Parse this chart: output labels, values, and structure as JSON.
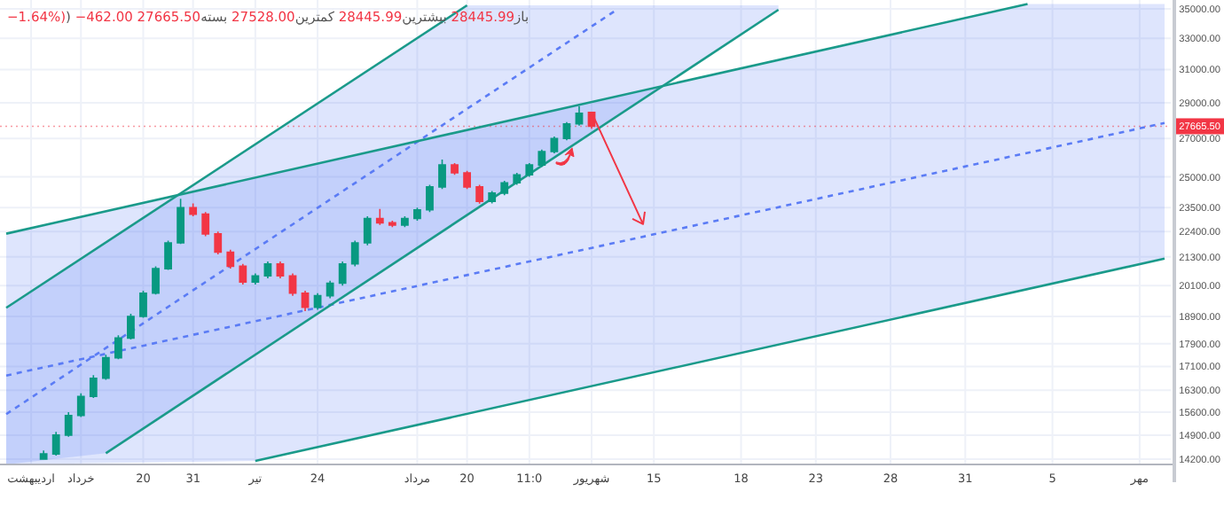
{
  "chart_data": {
    "type": "candlestick",
    "title": "باز28445.99 بیشترین28445.99 کمترین27528.00 بسته27665.50 −462.00 (−1.64%)",
    "categories": [
      null,
      null,
      "اردیبهشت",
      null,
      null,
      null,
      "خرداد",
      null,
      null,
      null,
      null,
      "20",
      null,
      null,
      null,
      "31",
      null,
      null,
      null,
      null,
      "تیر",
      null,
      null,
      null,
      null,
      "24",
      null,
      null,
      null,
      null,
      null,
      null,
      null,
      "مرداد",
      null,
      null,
      null,
      "20",
      null,
      null,
      null,
      null,
      "11:0",
      null,
      null,
      null,
      null,
      "شهریور",
      null,
      null,
      null,
      null,
      "15",
      null,
      null,
      null,
      null,
      null,
      null,
      "18",
      null,
      null,
      null,
      null,
      null,
      "23",
      null,
      null,
      null,
      null,
      null,
      "28",
      null,
      null,
      null,
      null,
      null,
      "31",
      null,
      null,
      null,
      null,
      null,
      null,
      "5",
      null,
      null,
      null,
      null,
      null,
      null,
      "مهر",
      null,
      null
    ],
    "ohlc": [
      null,
      null,
      null,
      [
        14200,
        14450,
        14200,
        14350
      ],
      [
        14350,
        15000,
        14300,
        14900
      ],
      [
        14900,
        15600,
        14850,
        15500
      ],
      [
        15500,
        16200,
        15450,
        16100
      ],
      [
        16100,
        16800,
        16050,
        16700
      ],
      [
        16700,
        17500,
        16650,
        17400
      ],
      [
        17400,
        18200,
        17350,
        18100
      ],
      [
        18100,
        19000,
        18050,
        18900
      ],
      [
        18900,
        19900,
        18850,
        19800
      ],
      [
        19800,
        20900,
        19750,
        20800
      ],
      [
        20800,
        22000,
        20750,
        21900
      ],
      [
        21900,
        23930,
        21850,
        23500
      ],
      [
        23500,
        23700,
        23100,
        23200
      ],
      [
        23200,
        23300,
        22200,
        22300
      ],
      [
        22300,
        22400,
        21400,
        21500
      ],
      [
        21500,
        21600,
        20800,
        20900
      ],
      [
        20900,
        21000,
        20150,
        20250
      ],
      [
        20250,
        20600,
        20150,
        20500
      ],
      [
        20500,
        21100,
        20400,
        21000
      ],
      [
        21000,
        21100,
        20400,
        20500
      ],
      [
        20500,
        20600,
        19700,
        19800
      ],
      [
        19800,
        19900,
        19100,
        19250
      ],
      [
        19250,
        19800,
        19150,
        19700
      ],
      [
        19700,
        20300,
        19600,
        20200
      ],
      [
        20200,
        21100,
        20100,
        21000
      ],
      [
        21000,
        22000,
        20900,
        21900
      ],
      [
        21900,
        23100,
        21800,
        23000
      ],
      [
        23000,
        23440,
        22700,
        22800
      ],
      [
        22800,
        22900,
        22600,
        22700
      ],
      [
        22700,
        23100,
        22600,
        23000
      ],
      [
        23000,
        23500,
        22900,
        23400
      ],
      [
        23400,
        24600,
        23300,
        24500
      ],
      [
        24500,
        25880,
        24400,
        25600
      ],
      [
        25600,
        25700,
        25100,
        25200
      ],
      [
        25200,
        25300,
        24400,
        24500
      ],
      [
        24500,
        24600,
        23690,
        23800
      ],
      [
        23800,
        24300,
        23700,
        24200
      ],
      [
        24200,
        24800,
        24100,
        24700
      ],
      [
        24700,
        25200,
        24600,
        25100
      ],
      [
        25100,
        25700,
        25000,
        25600
      ],
      [
        25600,
        26400,
        25500,
        26300
      ],
      [
        26300,
        27100,
        26200,
        27000
      ],
      [
        27000,
        27900,
        26900,
        27800
      ],
      [
        27800,
        28800,
        27700,
        28400
      ],
      [
        28445.99,
        28445.99,
        27528,
        27665.5
      ],
      null,
      null,
      null,
      null,
      null,
      null,
      null,
      null,
      null,
      null,
      null,
      null,
      null,
      null,
      null,
      null,
      null,
      null,
      null,
      null,
      null,
      null,
      null,
      null,
      null,
      null,
      null,
      null,
      null,
      null,
      null,
      null,
      null,
      null,
      null,
      null,
      null,
      null,
      null,
      null,
      null,
      null,
      null,
      null,
      null,
      null
    ],
    "colors": [
      null,
      null,
      null,
      "#089981",
      "#089981",
      "#089981",
      "#089981",
      "#089981",
      "#089981",
      "#089981",
      "#089981",
      "#089981",
      "#089981",
      "#089981",
      "#089981",
      "#f23645",
      "#f23645",
      "#f23645",
      "#f23645",
      "#f23645",
      "#089981",
      "#089981",
      "#f23645",
      "#f23645",
      "#f23645",
      "#089981",
      "#089981",
      "#089981",
      "#089981",
      "#089981",
      "#f23645",
      "#f23645",
      "#089981",
      "#089981",
      "#089981",
      "#089981",
      "#f23645",
      "#f23645",
      "#f23645",
      "#089981",
      "#089981",
      "#089981",
      "#089981",
      "#089981",
      "#089981",
      "#089981",
      "#089981",
      "#f23645",
      null,
      null,
      null,
      null,
      null,
      null,
      null,
      null,
      null,
      null,
      null,
      null,
      null,
      null,
      null,
      null,
      null,
      null,
      null,
      null,
      null,
      null,
      null,
      null,
      null,
      null,
      null,
      null,
      null,
      null,
      null,
      null,
      null,
      null,
      null,
      null,
      null,
      null,
      null,
      null,
      null,
      null,
      null,
      null,
      null,
      null
    ],
    "series": [
      {
        "type": "line",
        "color": "#5b7cf5",
        "line_style": "dashed",
        "values": [
          16790,
          null,
          null,
          null,
          null,
          null,
          null,
          null,
          null,
          null,
          null,
          null,
          null,
          null,
          null,
          null,
          null,
          null,
          null,
          null,
          18720,
          null,
          null,
          null,
          null,
          null,
          null,
          null,
          null,
          null,
          null,
          null,
          null,
          null,
          null,
          null,
          null,
          null,
          null,
          null,
          null,
          null,
          null,
          null,
          null,
          null,
          null,
          null,
          null,
          null,
          null,
          null,
          null,
          null,
          null,
          null,
          null,
          null,
          null,
          null,
          null,
          null,
          null,
          null,
          null,
          null,
          null,
          null,
          null,
          null,
          null,
          null,
          null,
          null,
          null,
          null,
          null,
          null,
          null,
          null,
          null,
          null,
          26230,
          null,
          null,
          null,
          null,
          null,
          null,
          null,
          null,
          null,
          null,
          27850
        ],
        "lower": [
          14050,
          null,
          null,
          null,
          null,
          null,
          null,
          null,
          null,
          null,
          null,
          null,
          null,
          null,
          null,
          null,
          null,
          null,
          null,
          null,
          14150,
          null,
          null,
          null,
          null,
          null,
          null,
          null,
          null,
          null,
          null,
          null,
          null,
          null,
          null,
          null,
          null,
          null,
          null,
          null,
          null,
          null,
          null,
          null,
          null,
          null,
          null,
          null,
          null,
          null,
          null,
          null,
          null,
          null,
          null,
          null,
          null,
          null,
          null,
          null,
          null,
          null,
          null,
          null,
          null,
          null,
          null,
          null,
          null,
          null,
          null,
          null,
          null,
          null,
          null,
          null,
          null,
          null,
          null,
          null,
          null,
          null,
          19960,
          null,
          null,
          null,
          null,
          null,
          null,
          null,
          null,
          null,
          null,
          21220
        ],
        "upper": [
          22310,
          null,
          null,
          null,
          null,
          null,
          null,
          null,
          null,
          null,
          null,
          null,
          null,
          null,
          null,
          null,
          null,
          null,
          null,
          null,
          24960,
          null,
          null,
          null,
          null,
          null,
          null,
          null,
          null,
          null,
          null,
          null,
          null,
          null,
          null,
          null,
          null,
          null,
          null,
          null,
          null,
          null,
          null,
          null,
          null,
          null,
          null,
          null,
          null,
          null,
          null,
          null,
          null,
          null,
          null,
          null,
          null,
          null,
          null,
          null,
          null,
          null,
          null,
          null,
          null,
          null,
          null,
          null,
          null,
          null,
          null,
          null,
          null,
          null,
          null,
          null,
          null,
          null,
          null,
          null,
          null,
          null,
          35350,
          null,
          null,
          null,
          null,
          null,
          null,
          null,
          null,
          null,
          null,
          35350
        ]
      },
      {
        "type": "line",
        "color": "#5b7cf5",
        "line_style": "dashed",
        "values": [
          15540,
          null,
          null,
          null,
          null,
          null,
          null,
          null,
          17740,
          null,
          null,
          null,
          null,
          null,
          null,
          null,
          null,
          null,
          null,
          null,
          null,
          null,
          null,
          null,
          null,
          null,
          null,
          null,
          null,
          null,
          null,
          null,
          null,
          null,
          null,
          null,
          null,
          28650,
          null,
          null,
          null,
          null,
          null,
          null,
          null,
          null,
          null,
          null,
          null,
          34930,
          null,
          null,
          null,
          null,
          null,
          null,
          null,
          null,
          null,
          null,
          null,
          null,
          null,
          null,
          null,
          null,
          null,
          null,
          null,
          null,
          null,
          null,
          null,
          null,
          null,
          null,
          null,
          null,
          null,
          null,
          null,
          null,
          null,
          null,
          null,
          null,
          null,
          null,
          null,
          null,
          null,
          null,
          null,
          null
        ],
        "lower": [
          14050,
          null,
          null,
          null,
          null,
          null,
          null,
          null,
          14370,
          null,
          null,
          null,
          null,
          null,
          null,
          null,
          null,
          null,
          null,
          null,
          null,
          null,
          null,
          null,
          null,
          null,
          null,
          null,
          null,
          null,
          null,
          null,
          null,
          null,
          null,
          null,
          null,
          23160,
          null,
          null,
          null,
          null,
          null,
          null,
          null,
          null,
          null,
          null,
          null,
          28210,
          null,
          null,
          null,
          null,
          null,
          null,
          null,
          null,
          null,
          null,
          null,
          null,
          34940,
          null,
          null,
          null,
          null,
          null,
          null,
          null,
          null,
          null,
          null,
          null,
          null,
          null,
          null,
          null,
          null,
          null,
          null,
          null,
          null,
          null,
          null,
          null,
          null,
          null,
          null,
          null,
          null,
          null,
          null,
          null
        ],
        "upper": [
          19230,
          null,
          null,
          null,
          null,
          null,
          null,
          null,
          21900,
          null,
          null,
          null,
          null,
          null,
          null,
          null,
          null,
          null,
          null,
          null,
          null,
          null,
          null,
          null,
          null,
          null,
          null,
          null,
          null,
          null,
          null,
          null,
          null,
          null,
          null,
          null,
          null,
          35250,
          null,
          null,
          null,
          null,
          null,
          null,
          null,
          null,
          null,
          null,
          null,
          35250,
          null,
          null,
          null,
          null,
          null,
          null,
          null,
          null,
          null,
          null,
          null,
          null,
          35250,
          null,
          null,
          null,
          null,
          null,
          null,
          null,
          null,
          null,
          null,
          null,
          null,
          null,
          null,
          null,
          null,
          null,
          null,
          null,
          null,
          null,
          null,
          null,
          null,
          null,
          null,
          null,
          null,
          null,
          null,
          null
        ]
      },
      {
        "type": "line",
        "color": "#1a9a8a",
        "line_style": "solid",
        "values": [
          22310,
          null,
          null,
          null,
          null,
          null,
          null,
          null,
          null,
          null,
          null,
          null,
          null,
          null,
          null,
          null,
          null,
          null,
          null,
          null,
          null,
          null,
          null,
          null,
          null,
          null,
          null,
          null,
          null,
          null,
          null,
          null,
          null,
          null,
          null,
          null,
          null,
          null,
          null,
          null,
          null,
          null,
          null,
          null,
          null,
          null,
          null,
          null,
          null,
          null,
          null,
          null,
          null,
          null,
          null,
          null,
          null,
          null,
          null,
          null,
          null,
          null,
          null,
          null,
          null,
          null,
          null,
          null,
          null,
          null,
          null,
          null,
          null,
          null,
          null,
          null,
          null,
          null,
          null,
          null,
          null,
          null,
          35350,
          null,
          null,
          null,
          null,
          null,
          null,
          null,
          null,
          null,
          null,
          null
        ]
      },
      {
        "type": "line",
        "color": "#1a9a8a",
        "line_style": "solid",
        "values": [
          null,
          null,
          null,
          null,
          null,
          null,
          null,
          null,
          null,
          null,
          null,
          null,
          null,
          null,
          null,
          null,
          null,
          null,
          null,
          null,
          14150,
          null,
          null,
          null,
          null,
          null,
          null,
          null,
          null,
          null,
          null,
          null,
          null,
          null,
          null,
          null,
          null,
          null,
          null,
          null,
          null,
          null,
          null,
          null,
          null,
          null,
          null,
          null,
          null,
          null,
          null,
          null,
          null,
          null,
          null,
          null,
          null,
          null,
          null,
          null,
          null,
          null,
          null,
          null,
          null,
          null,
          null,
          null,
          null,
          null,
          null,
          null,
          null,
          null,
          null,
          null,
          null,
          null,
          null,
          null,
          null,
          null,
          null,
          null,
          null,
          null,
          null,
          null,
          null,
          null,
          null,
          null,
          null,
          21220
        ]
      },
      {
        "type": "line",
        "color": "#1a9a8a",
        "line_style": "solid",
        "values": [
          19230,
          null,
          null,
          null,
          null,
          null,
          null,
          null,
          null,
          null,
          null,
          null,
          null,
          null,
          null,
          null,
          null,
          null,
          null,
          null,
          null,
          null,
          null,
          null,
          null,
          null,
          null,
          null,
          null,
          null,
          null,
          null,
          null,
          null,
          null,
          null,
          null,
          35250,
          null,
          null,
          null,
          null,
          null,
          null,
          null,
          null,
          null,
          null,
          null,
          null,
          null,
          null,
          null,
          null,
          null,
          null,
          null,
          null,
          null,
          null,
          null,
          null,
          null,
          null,
          null,
          null,
          null,
          null,
          null,
          null,
          null,
          null,
          null,
          null,
          null,
          null,
          null,
          null,
          null,
          null,
          null,
          null,
          null,
          null,
          null,
          null,
          null,
          null,
          null,
          null,
          null,
          null,
          null,
          null
        ]
      },
      {
        "type": "line",
        "color": "#1a9a8a",
        "line_style": "solid",
        "values": [
          null,
          null,
          null,
          null,
          null,
          null,
          null,
          null,
          14370,
          null,
          null,
          null,
          null,
          null,
          null,
          null,
          null,
          null,
          null,
          null,
          null,
          null,
          null,
          null,
          null,
          null,
          null,
          null,
          null,
          null,
          null,
          null,
          null,
          null,
          null,
          null,
          null,
          null,
          null,
          null,
          null,
          null,
          null,
          null,
          null,
          null,
          null,
          null,
          null,
          null,
          null,
          null,
          null,
          null,
          null,
          null,
          null,
          null,
          null,
          null,
          null,
          null,
          34940,
          null,
          null,
          null,
          null,
          null,
          null,
          null,
          null,
          null,
          null,
          null,
          null,
          null,
          null,
          null,
          null,
          null,
          null,
          null,
          null,
          null,
          null,
          null,
          null,
          null,
          null,
          null,
          null,
          null,
          null,
          null
        ]
      }
    ],
    "ref_lines": [
      {
        "axis": "y",
        "value": 27665.5,
        "label": "27665.50",
        "color": "#f23645",
        "line_style": "dotted"
      }
    ],
    "log": true,
    "grid": true,
    "ylim": [
      14050,
      35630
    ],
    "yticks": [
      {
        "value": 35000,
        "label": "35000.00"
      },
      {
        "value": 33000,
        "label": "33000.00"
      },
      {
        "value": 31000,
        "label": "31000.00"
      },
      {
        "value": 29000,
        "label": "29000.00"
      },
      {
        "value": 27000,
        "label": "27000.00"
      },
      {
        "value": 25000,
        "label": "25000.00"
      },
      {
        "value": 23500,
        "label": "23500.00"
      },
      {
        "value": 22400,
        "label": "22400.00"
      },
      {
        "value": 21300,
        "label": "21300.00"
      },
      {
        "value": 20100,
        "label": "20100.00"
      },
      {
        "value": 18900,
        "label": "18900.00"
      },
      {
        "value": 17900,
        "label": "17900.00"
      },
      {
        "value": 17100,
        "label": "17100.00"
      },
      {
        "value": 16300,
        "label": "16300.00"
      },
      {
        "value": 15600,
        "label": "15600.00"
      },
      {
        "value": 14900,
        "label": "14900.00"
      },
      {
        "value": 14200,
        "label": "14200.00"
      }
    ]
  }
}
